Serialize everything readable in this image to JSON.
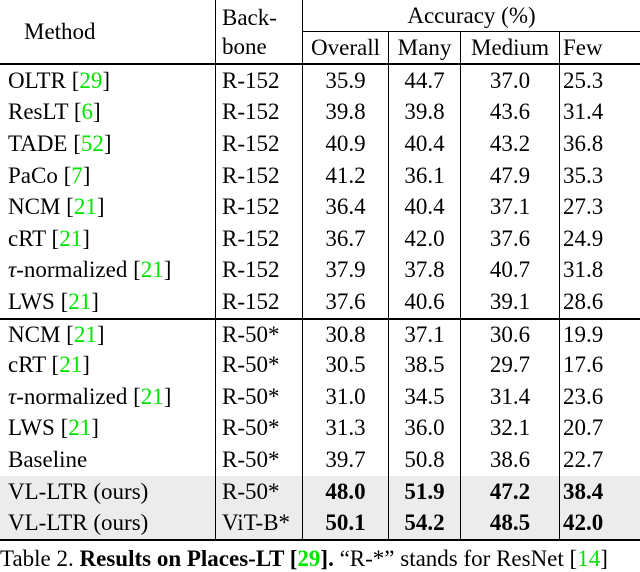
{
  "colors": {
    "citation_green": "#00E400",
    "highlight_gray": "#ECECEC",
    "border_black": "#000000"
  },
  "table": {
    "header": {
      "method": "Method",
      "backbone_line1": "Back-",
      "backbone_line2": "bone",
      "accuracy": "Accuracy (%)",
      "subcolumns": [
        "Overall",
        "Many",
        "Medium",
        "Few"
      ]
    },
    "rows": [
      {
        "method_segments": [
          {
            "t": "OLTR ["
          },
          {
            "t": "29",
            "c": "green",
            "link": true
          },
          {
            "t": "]"
          }
        ],
        "backbone": "R-152",
        "values": [
          "35.9",
          "44.7",
          "37.0",
          "25.3"
        ],
        "bold": false,
        "highlight": false,
        "section_start": false
      },
      {
        "method_segments": [
          {
            "t": "ResLT ["
          },
          {
            "t": "6",
            "c": "green",
            "link": true
          },
          {
            "t": "]"
          }
        ],
        "backbone": "R-152",
        "values": [
          "39.8",
          "39.8",
          "43.6",
          "31.4"
        ],
        "bold": false,
        "highlight": false,
        "section_start": false
      },
      {
        "method_segments": [
          {
            "t": "TADE ["
          },
          {
            "t": "52",
            "c": "green",
            "link": true
          },
          {
            "t": "]"
          }
        ],
        "backbone": "R-152",
        "values": [
          "40.9",
          "40.4",
          "43.2",
          "36.8"
        ],
        "bold": false,
        "highlight": false,
        "section_start": false
      },
      {
        "method_segments": [
          {
            "t": "PaCo ["
          },
          {
            "t": "7",
            "c": "green",
            "link": true
          },
          {
            "t": "]"
          }
        ],
        "backbone": "R-152",
        "values": [
          "41.2",
          "36.1",
          "47.9",
          "35.3"
        ],
        "bold": false,
        "highlight": false,
        "section_start": false
      },
      {
        "method_segments": [
          {
            "t": "NCM ["
          },
          {
            "t": "21",
            "c": "green",
            "link": true
          },
          {
            "t": "]"
          }
        ],
        "backbone": "R-152",
        "values": [
          "36.4",
          "40.4",
          "37.1",
          "27.3"
        ],
        "bold": false,
        "highlight": false,
        "section_start": false
      },
      {
        "method_segments": [
          {
            "t": "cRT ["
          },
          {
            "t": "21",
            "c": "green",
            "link": true
          },
          {
            "t": "]"
          }
        ],
        "backbone": "R-152",
        "values": [
          "36.7",
          "42.0",
          "37.6",
          "24.9"
        ],
        "bold": false,
        "highlight": false,
        "section_start": false
      },
      {
        "method_segments": [
          {
            "t": "τ",
            "i": true
          },
          {
            "t": "-normalized ["
          },
          {
            "t": "21",
            "c": "green",
            "link": true
          },
          {
            "t": "]"
          }
        ],
        "backbone": "R-152",
        "values": [
          "37.9",
          "37.8",
          "40.7",
          "31.8"
        ],
        "bold": false,
        "highlight": false,
        "section_start": false
      },
      {
        "method_segments": [
          {
            "t": "LWS ["
          },
          {
            "t": "21",
            "c": "green",
            "link": true
          },
          {
            "t": "]"
          }
        ],
        "backbone": "R-152",
        "values": [
          "37.6",
          "40.6",
          "39.1",
          "28.6"
        ],
        "bold": false,
        "highlight": false,
        "section_start": false
      },
      {
        "method_segments": [
          {
            "t": "NCM ["
          },
          {
            "t": "21",
            "c": "green",
            "link": true
          },
          {
            "t": "]"
          }
        ],
        "backbone": "R-50*",
        "values": [
          "30.8",
          "37.1",
          "30.6",
          "19.9"
        ],
        "bold": false,
        "highlight": false,
        "section_start": true
      },
      {
        "method_segments": [
          {
            "t": "cRT ["
          },
          {
            "t": "21",
            "c": "green",
            "link": true
          },
          {
            "t": "]"
          }
        ],
        "backbone": "R-50*",
        "values": [
          "30.5",
          "38.5",
          "29.7",
          "17.6"
        ],
        "bold": false,
        "highlight": false,
        "section_start": false
      },
      {
        "method_segments": [
          {
            "t": "τ",
            "i": true
          },
          {
            "t": "-normalized ["
          },
          {
            "t": "21",
            "c": "green",
            "link": true
          },
          {
            "t": "]"
          }
        ],
        "backbone": "R-50*",
        "values": [
          "31.0",
          "34.5",
          "31.4",
          "23.6"
        ],
        "bold": false,
        "highlight": false,
        "section_start": false
      },
      {
        "method_segments": [
          {
            "t": "LWS ["
          },
          {
            "t": "21",
            "c": "green",
            "link": true
          },
          {
            "t": "]"
          }
        ],
        "backbone": "R-50*",
        "values": [
          "31.3",
          "36.0",
          "32.1",
          "20.7"
        ],
        "bold": false,
        "highlight": false,
        "section_start": false
      },
      {
        "method_segments": [
          {
            "t": "Baseline"
          }
        ],
        "backbone": "R-50*",
        "values": [
          "39.7",
          "50.8",
          "38.6",
          "22.7"
        ],
        "bold": false,
        "highlight": false,
        "section_start": false
      },
      {
        "method_segments": [
          {
            "t": "VL-LTR (ours)"
          }
        ],
        "backbone": "R-50*",
        "values": [
          "48.0",
          "51.9",
          "47.2",
          "38.4"
        ],
        "bold": true,
        "highlight": true,
        "section_start": false
      },
      {
        "method_segments": [
          {
            "t": "VL-LTR (ours)"
          }
        ],
        "backbone": "ViT-B*",
        "values": [
          "50.1",
          "54.2",
          "48.5",
          "42.0"
        ],
        "bold": true,
        "highlight": true,
        "section_start": false
      }
    ]
  },
  "caption": {
    "segments": [
      {
        "t": "Table 2. "
      },
      {
        "t": "Results on Places-LT [",
        "b": true
      },
      {
        "t": "29",
        "b": true,
        "c": "green",
        "link": true
      },
      {
        "t": "].",
        "b": true
      },
      {
        "t": " “R-*” stands for ResNet ["
      },
      {
        "t": "14",
        "c": "green",
        "link": true
      },
      {
        "t": "]"
      }
    ]
  }
}
